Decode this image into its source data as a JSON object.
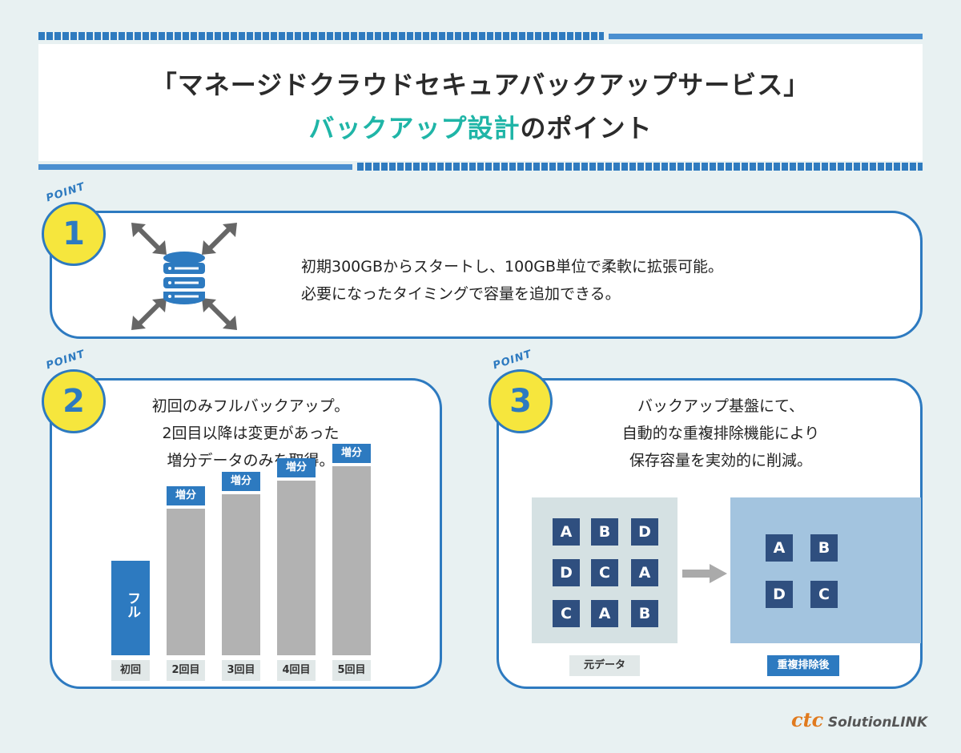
{
  "header": {
    "line1": "「マネージドクラウドセキュアバックアップサービス」",
    "line2_accent": "バックアップ設計",
    "line2_rest": "のポイント"
  },
  "point_label": "POINT",
  "point1": {
    "number": "1",
    "icon": "database-expand-icon",
    "lines": [
      "初期300GBからスタートし、100GB単位で柔軟に拡張可能。",
      "必要になったタイミングで容量を追加できる。"
    ]
  },
  "point2": {
    "number": "2",
    "lines": [
      "初回のみフルバックアップ。",
      "2回目以降は変更があった",
      "増分データのみを取得。"
    ],
    "chart_data": {
      "type": "bar",
      "title": "",
      "categories": [
        "初回",
        "2回目",
        "3回目",
        "4回目",
        "5回目"
      ],
      "values": [
        1,
        1.55,
        1.7,
        1.85,
        2.0
      ],
      "series_labels": [
        "フル",
        "増分",
        "増分",
        "増分",
        "増分"
      ],
      "xlabel": "",
      "ylabel": ""
    }
  },
  "point3": {
    "number": "3",
    "lines": [
      "バックアップ基盤にて、",
      "自動的な重複排除機能により",
      "保存容量を実効的に削減。"
    ],
    "original": {
      "label": "元データ",
      "tiles": [
        "A",
        "B",
        "D",
        "D",
        "C",
        "A",
        "C",
        "A",
        "B"
      ]
    },
    "deduped": {
      "label": "重複排除後",
      "tiles": [
        "A",
        "B",
        "D",
        "C"
      ]
    }
  },
  "logo": {
    "brand": "ctc",
    "name": "SolutionLINK"
  },
  "colors": {
    "primary": "#2d7ac0",
    "accent": "#1fb5a7",
    "badge": "#f6e63d",
    "bg": "#e8f1f2"
  }
}
